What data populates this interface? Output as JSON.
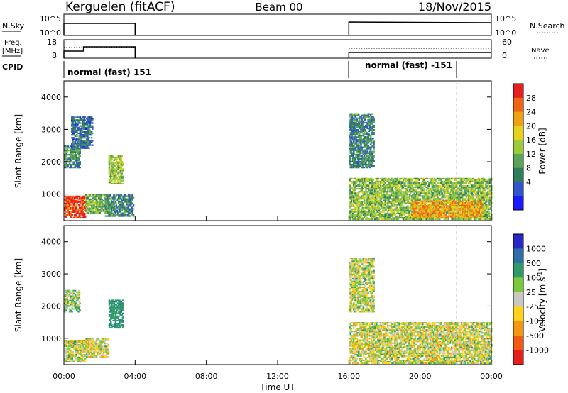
{
  "header": {
    "title_left": "Kerguelen (fitACF)",
    "title_center": "Beam 00",
    "title_right": "18/Nov/2015"
  },
  "top_panels": {
    "nsky_label": "N.Sky",
    "nsky_ticks": [
      "10^5",
      "10^0"
    ],
    "nsearch_label": "N.Search",
    "nsearch_ticks": [
      "10^5",
      "10^0"
    ],
    "freq_label_1": "Freq.",
    "freq_label_2": "[MHz]",
    "freq_ticks": [
      "18",
      "8"
    ],
    "nave_label": "Nave",
    "nave_ticks": [
      "60",
      "0"
    ],
    "cpid_label": "CPID",
    "cpid_entries": [
      "normal (fast) 151",
      "normal (fast) -151"
    ]
  },
  "colorbars": {
    "power_label": "Power [dB]",
    "power_ticks": [
      "28",
      "24",
      "20",
      "16",
      "12",
      "8",
      "4"
    ],
    "power_colors": [
      "#1a1aff",
      "#3355cc",
      "#2e7d5e",
      "#5aa55a",
      "#9ccc3c",
      "#e6d21e",
      "#f0a014",
      "#f06414",
      "#e61e1e"
    ],
    "velocity_label": "Velocity [m s",
    "velocity_label_sup": "-1",
    "velocity_label_end": "]",
    "velocity_ticks": [
      "1000",
      "500",
      "100",
      "25",
      "-25",
      "-100",
      "-500",
      "-1000"
    ],
    "velocity_colors": [
      "#2828c8",
      "#2e6ea8",
      "#2f9a6a",
      "#7cc83c",
      "#c8c8c0",
      "#ffd21e",
      "#f59614",
      "#f05a14",
      "#e61e1e"
    ]
  },
  "chart_data": [
    {
      "type": "heatmap",
      "name": "power",
      "ylabel": "Slant Range [km]",
      "ylim": [
        180,
        4500
      ],
      "xlim": [
        "00:00",
        "24:00"
      ],
      "yticks": [
        "1000",
        "2000",
        "3000",
        "4000"
      ],
      "xticks": [
        "00:00",
        "04:00",
        "08:00",
        "12:00",
        "16:00",
        "20:00",
        "00:00"
      ],
      "value_label": "Power [dB]",
      "value_range": [
        0,
        30
      ],
      "data_gaps": [
        [
          4.0,
          16.0
        ]
      ],
      "echo_regions": [
        {
          "t": [
            0.0,
            1.2
          ],
          "range_km": [
            250,
            950
          ],
          "mean": 27
        },
        {
          "t": [
            0.0,
            0.9
          ],
          "range_km": [
            1800,
            2500
          ],
          "mean": 10
        },
        {
          "t": [
            0.4,
            1.6
          ],
          "range_km": [
            2400,
            3400
          ],
          "mean": 7
        },
        {
          "t": [
            1.2,
            2.5
          ],
          "range_km": [
            400,
            1000
          ],
          "mean": 13
        },
        {
          "t": [
            2.5,
            3.3
          ],
          "range_km": [
            1300,
            2200
          ],
          "mean": 15
        },
        {
          "t": [
            2.3,
            3.9
          ],
          "range_km": [
            300,
            1000
          ],
          "mean": 9
        },
        {
          "t": [
            16.0,
            17.4
          ],
          "range_km": [
            1800,
            3500
          ],
          "mean": 9
        },
        {
          "t": [
            16.0,
            24.0
          ],
          "range_km": [
            200,
            1500
          ],
          "mean": 14
        },
        {
          "t": [
            19.5,
            23.5
          ],
          "range_km": [
            250,
            800
          ],
          "mean": 22
        }
      ]
    },
    {
      "type": "heatmap",
      "name": "velocity",
      "ylabel": "Slant Range [km]",
      "ylim": [
        180,
        4500
      ],
      "xlim": [
        "00:00",
        "24:00"
      ],
      "yticks": [
        "1000",
        "2000",
        "3000",
        "4000"
      ],
      "xticks": [
        "00:00",
        "04:00",
        "08:00",
        "12:00",
        "16:00",
        "20:00",
        "00:00"
      ],
      "xlabel": "Time UT",
      "value_label": "Velocity [m s-1]",
      "value_range": [
        -1000,
        1000
      ],
      "data_gaps": [
        [
          4.0,
          16.0
        ]
      ],
      "echo_regions": [
        {
          "t": [
            0.0,
            1.2
          ],
          "range_km": [
            250,
            950
          ],
          "mean": 0
        },
        {
          "t": [
            0.0,
            0.9
          ],
          "range_km": [
            1800,
            2500
          ],
          "mean": 60
        },
        {
          "t": [
            1.2,
            2.5
          ],
          "range_km": [
            400,
            1000
          ],
          "mean": -20
        },
        {
          "t": [
            2.5,
            3.3
          ],
          "range_km": [
            1300,
            2200
          ],
          "mean": 400
        },
        {
          "t": [
            16.0,
            17.4
          ],
          "range_km": [
            1800,
            3500
          ],
          "mean": 10
        },
        {
          "t": [
            16.0,
            24.0
          ],
          "range_km": [
            200,
            1500
          ],
          "mean": 0
        }
      ]
    }
  ],
  "axes": {
    "xlabel": "Time UT"
  }
}
